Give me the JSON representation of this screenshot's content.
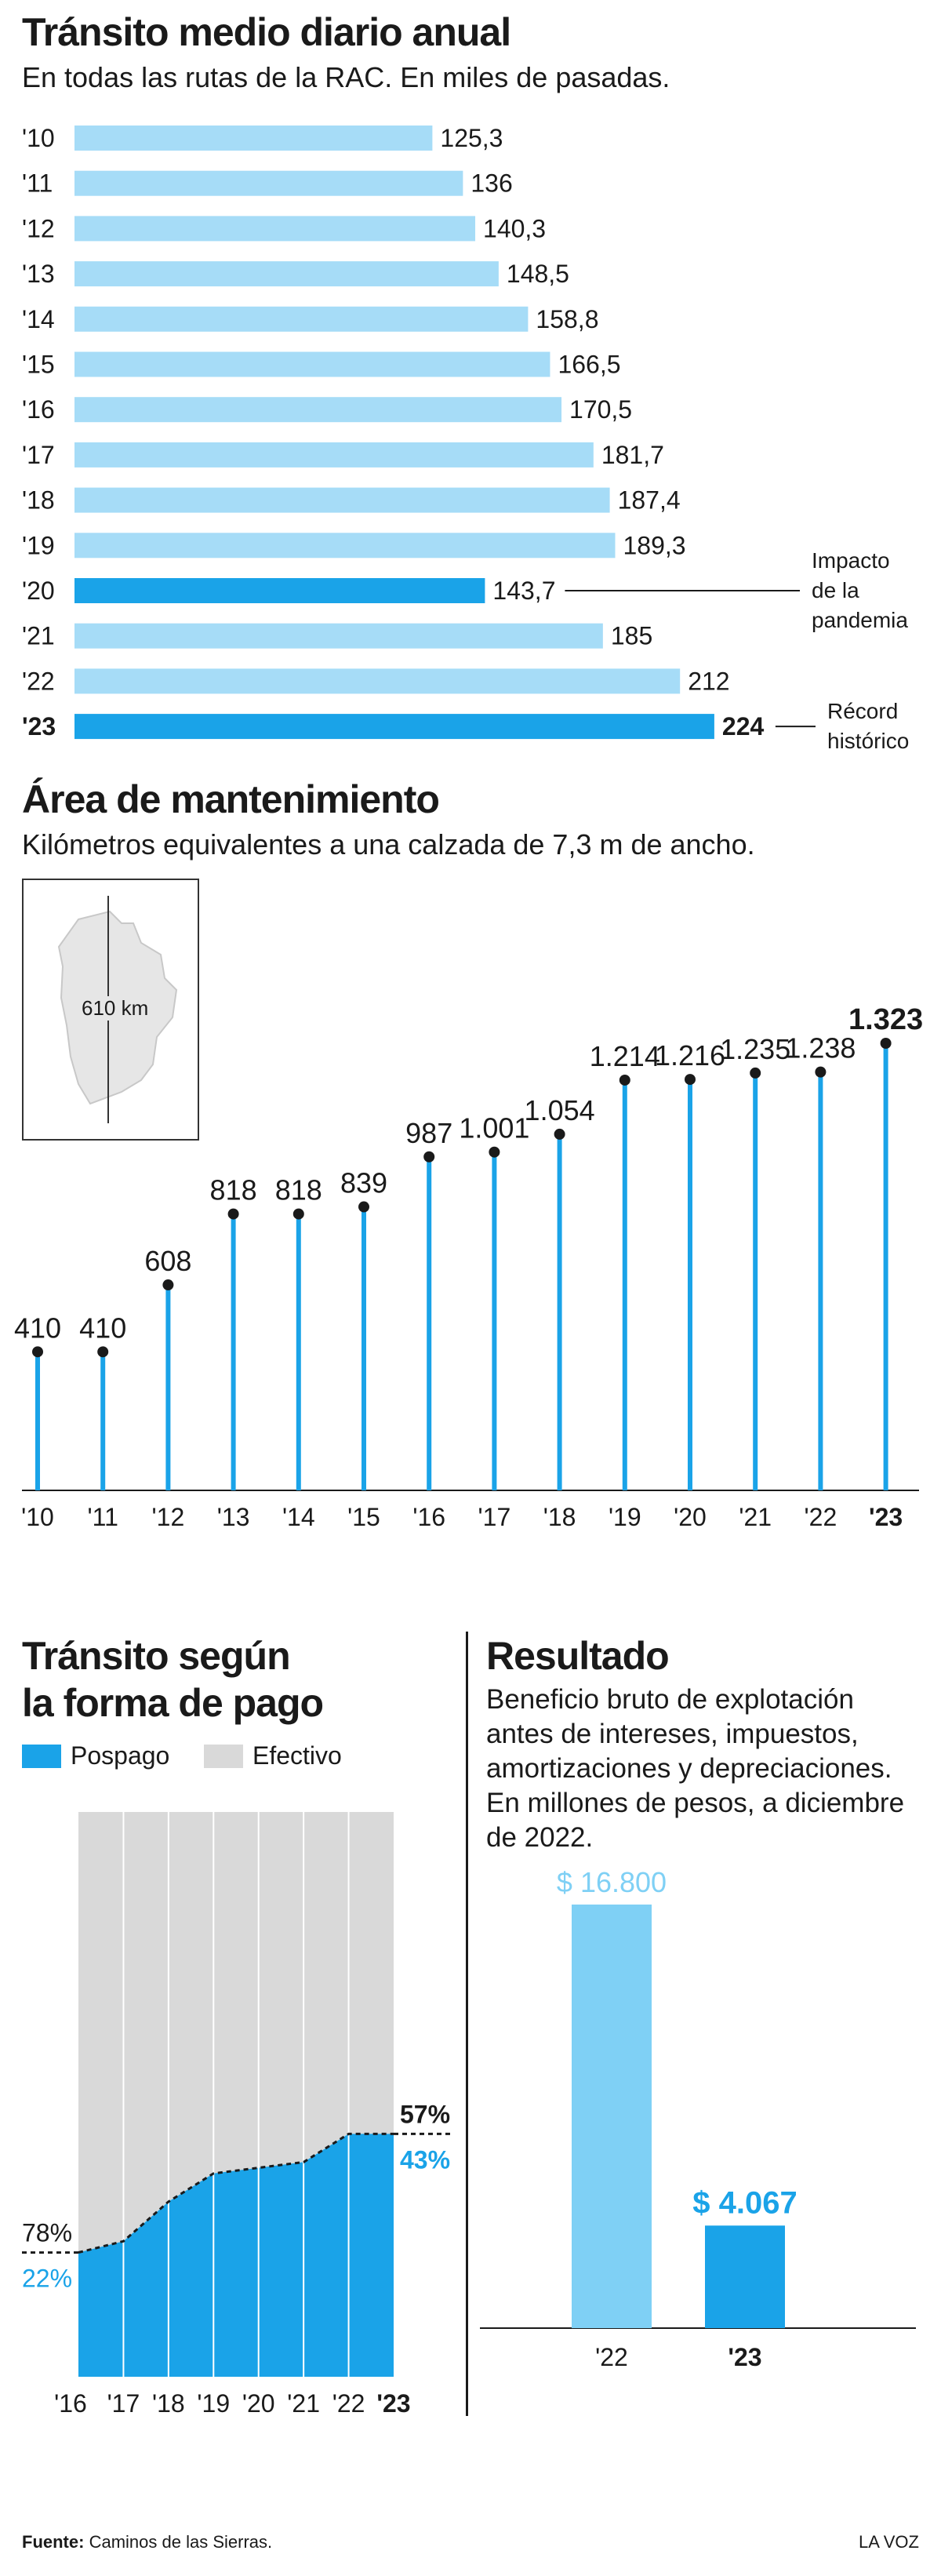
{
  "colors": {
    "accent": "#1aa3e8",
    "light": "#a6dcf7",
    "gray": "#d9d9d9",
    "text": "#1a1a1a"
  },
  "header1": {
    "title": "Tránsito medio diario anual",
    "subtitle": "En todas las rutas de la RAC. En miles de pasadas."
  },
  "header2": {
    "title": "Área de mantenimiento",
    "subtitle": "Kilómetros equivalentes a una calzada de 7,3 m de ancho."
  },
  "map_label": "610 km",
  "header3": {
    "title_line1": "Tránsito según",
    "title_line2": "la forma de pago"
  },
  "legend": {
    "postpaid": "Pospago",
    "cash": "Efectivo"
  },
  "header4": {
    "title": "Resultado",
    "desc": [
      "Beneficio bruto de explotación",
      "antes de intereses, impuestos,",
      "amortizaciones y depreciaciones.",
      "En millones de pesos, a diciembre",
      "de 2022."
    ]
  },
  "footer": {
    "source_label": "Fuente:",
    "source_text": "Caminos de las Sierras.",
    "brand": "LA VOZ"
  },
  "chart_data": [
    {
      "type": "bar",
      "orientation": "horizontal",
      "title": "Tránsito medio diario anual",
      "subtitle": "En todas las rutas de la RAC. En miles de pasadas.",
      "categories": [
        "'10",
        "'11",
        "'12",
        "'13",
        "'14",
        "'15",
        "'16",
        "'17",
        "'18",
        "'19",
        "'20",
        "'21",
        "'22",
        "'23"
      ],
      "values": [
        125.3,
        136,
        140.3,
        148.5,
        158.8,
        166.5,
        170.5,
        181.7,
        187.4,
        189.3,
        143.7,
        185,
        212,
        224
      ],
      "value_labels": [
        "125,3",
        "136",
        "140,3",
        "148,5",
        "158,8",
        "166,5",
        "170,5",
        "181,7",
        "187,4",
        "189,3",
        "143,7",
        "185",
        "212",
        "224"
      ],
      "highlight": [
        "'20",
        "'23"
      ],
      "annotations": [
        {
          "category": "'20",
          "text": [
            "Impacto",
            "de la",
            "pandemia"
          ]
        },
        {
          "category": "'23",
          "text": [
            "Récord",
            "histórico"
          ]
        }
      ]
    },
    {
      "type": "lollipop",
      "title": "Área de mantenimiento",
      "subtitle": "Kilómetros equivalentes a una calzada de 7,3 m de ancho.",
      "categories": [
        "'10",
        "'11",
        "'12",
        "'13",
        "'14",
        "'15",
        "'16",
        "'17",
        "'18",
        "'19",
        "'20",
        "'21",
        "'22",
        "'23"
      ],
      "values": [
        410,
        410,
        608,
        818,
        818,
        839,
        987,
        1001,
        1054,
        1214,
        1216,
        1235,
        1238,
        1323
      ],
      "value_labels": [
        "410",
        "410",
        "608",
        "818",
        "818",
        "839",
        "987",
        "1.001",
        "1.054",
        "1.214",
        "1.216",
        "1.235",
        "1.238",
        "1.323"
      ],
      "ylim": [
        0,
        1323
      ]
    },
    {
      "type": "area",
      "title": "Tránsito según la forma de pago",
      "categories": [
        "'16",
        "'17",
        "'18",
        "'19",
        "'20",
        "'21",
        "'22",
        "'23"
      ],
      "series": [
        {
          "name": "Pospago",
          "values": [
            22,
            24,
            31,
            36,
            37,
            38,
            43,
            43
          ]
        },
        {
          "name": "Efectivo",
          "values": [
            78,
            76,
            69,
            64,
            63,
            62,
            57,
            57
          ]
        }
      ],
      "labels": {
        "start_cash": "78%",
        "start_postpaid": "22%",
        "end_cash": "57%",
        "end_postpaid": "43%"
      },
      "ylim": [
        0,
        100
      ]
    },
    {
      "type": "bar",
      "title": "Resultado",
      "categories": [
        "'22",
        "'23"
      ],
      "values": [
        16800,
        4067
      ],
      "value_labels": [
        "$ 16.800",
        "$ 4.067"
      ]
    }
  ]
}
